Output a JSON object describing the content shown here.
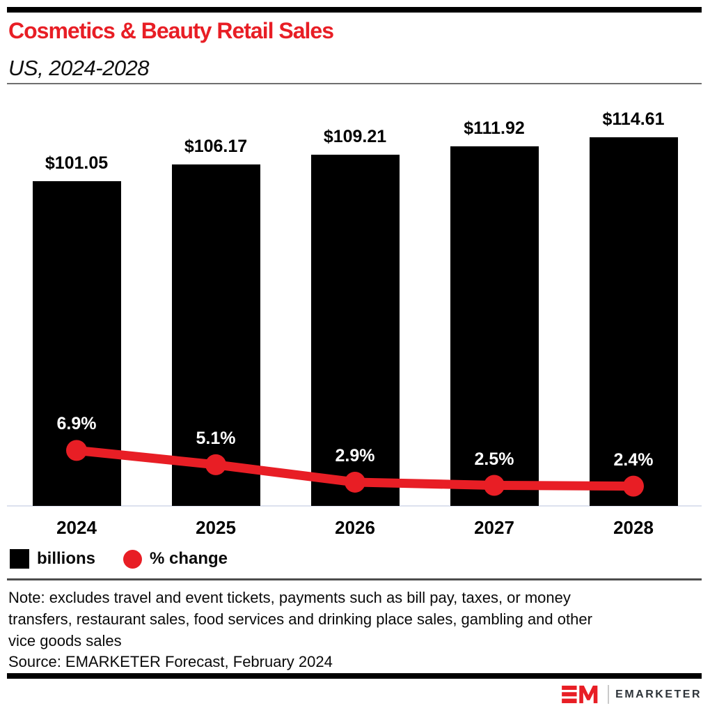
{
  "colors": {
    "accent_red": "#e81e25",
    "bar_black": "#000000",
    "baseline_gray": "#dce1ee",
    "header_rule_gray": "#6f6f6f",
    "divider_dark": "#4c4c4c",
    "logo_text_color": "#2d3339"
  },
  "header": {
    "title": "Cosmetics & Beauty Retail Sales",
    "subtitle": "US, 2024-2028"
  },
  "chart_data": {
    "type": "bar",
    "title": "Cosmetics & Beauty Retail Sales",
    "subtitle": "US, 2024-2028",
    "categories": [
      "2024",
      "2025",
      "2026",
      "2027",
      "2028"
    ],
    "series": [
      {
        "name": "billions",
        "type": "bar",
        "unit": "US$ billions",
        "color": "#000000",
        "values": [
          101.05,
          106.17,
          109.21,
          111.92,
          114.61
        ],
        "labels": [
          "$101.05",
          "$106.17",
          "$109.21",
          "$111.92",
          "$114.61"
        ]
      },
      {
        "name": "% change",
        "type": "line",
        "unit": "percent",
        "color": "#e81e25",
        "values": [
          6.9,
          5.1,
          2.9,
          2.5,
          2.4
        ],
        "labels": [
          "6.9%",
          "5.1%",
          "2.9%",
          "2.5%",
          "2.4%"
        ]
      }
    ],
    "ylim": [
      0,
      129
    ],
    "grid": false,
    "legend_position": "bottom-left"
  },
  "legend": {
    "items": [
      {
        "label": "billions",
        "swatch": "square",
        "color": "#000000"
      },
      {
        "label": "% change",
        "swatch": "circle",
        "color": "#e81e25"
      }
    ]
  },
  "footer": {
    "note": "Note: excludes travel and event tickets, payments such as bill pay, taxes, or money\ntransfers, restaurant sales, food services and drinking place sales, gambling and other\nvice goods sales",
    "source": "Source: EMARKETER Forecast, February 2024",
    "logo_text": "EMARKETER"
  }
}
